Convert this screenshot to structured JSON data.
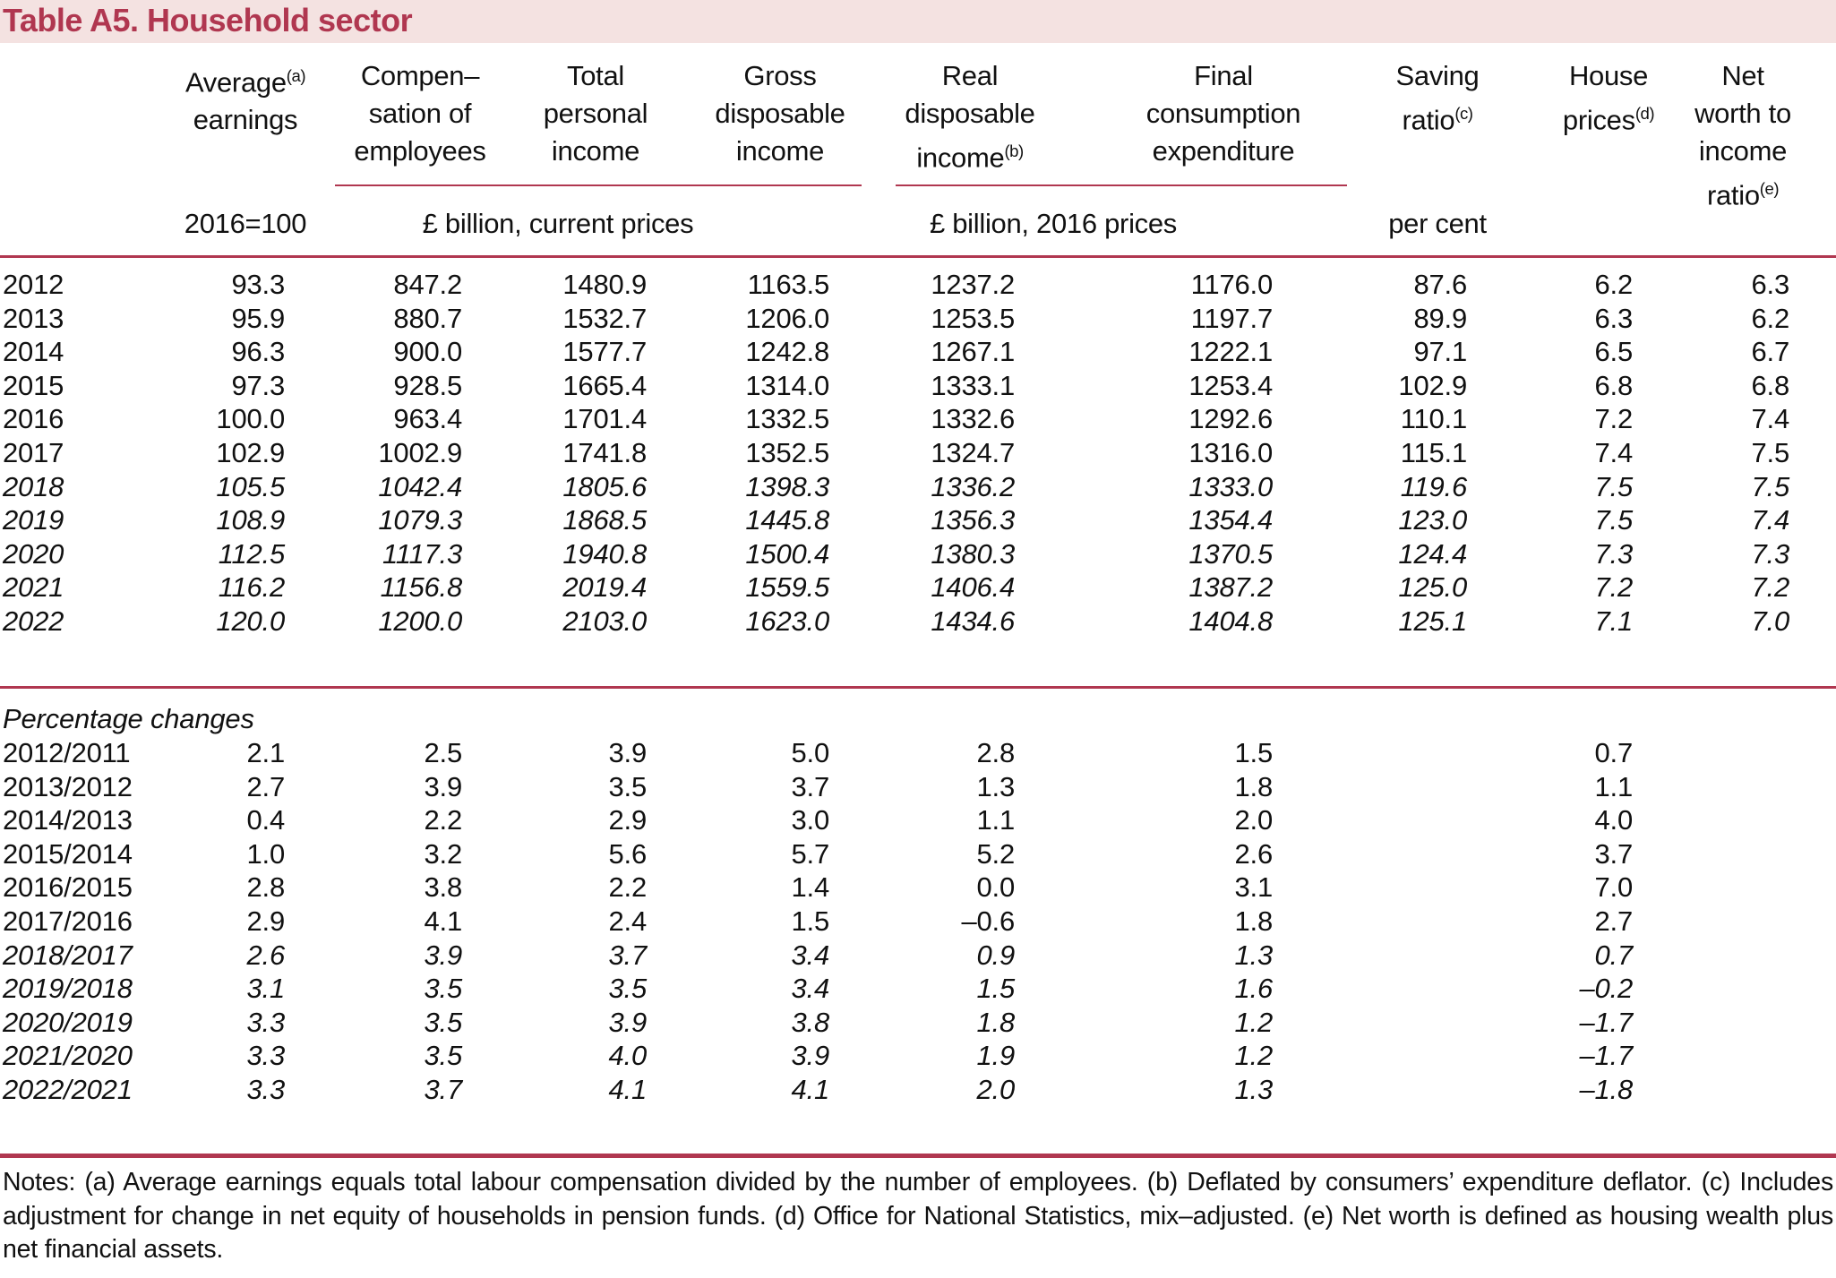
{
  "title": "Table A5. Household sector",
  "colors": {
    "accent": "#b03750",
    "band": "#f4e2e1",
    "text": "#111111"
  },
  "table": {
    "columns": [
      {
        "id": "average-earnings",
        "lines": [
          {
            "t": "Average",
            "s": "(a)"
          },
          {
            "t": "earnings"
          }
        ]
      },
      {
        "id": "compensation-of-employees",
        "lines": [
          {
            "t": "Compen–"
          },
          {
            "t": "sation of"
          },
          {
            "t": "employees"
          }
        ]
      },
      {
        "id": "total-personal-income",
        "lines": [
          {
            "t": "Total"
          },
          {
            "t": "personal"
          },
          {
            "t": "income"
          }
        ]
      },
      {
        "id": "gross-disposable-income",
        "lines": [
          {
            "t": "Gross"
          },
          {
            "t": "disposable"
          },
          {
            "t": "income"
          }
        ]
      },
      {
        "id": "real-disposable-income",
        "lines": [
          {
            "t": "Real"
          },
          {
            "t": "disposable"
          },
          {
            "t": "income",
            "s": "(b)"
          }
        ]
      },
      {
        "id": "final-consumption-expenditure",
        "lines": [
          {
            "t": "Final"
          },
          {
            "t": "consumption"
          },
          {
            "t": "expenditure"
          }
        ]
      },
      {
        "id": "saving-ratio",
        "lines": [
          {
            "t": "Saving"
          },
          {
            "t": "ratio",
            "s": "(c)"
          }
        ]
      },
      {
        "id": "house-prices",
        "lines": [
          {
            "t": "House"
          },
          {
            "t": "prices",
            "s": "(d)"
          }
        ]
      },
      {
        "id": "net-worth-to-income-ratio",
        "lines": [
          {
            "t": "Net"
          },
          {
            "t": "worth to"
          },
          {
            "t": "income"
          },
          {
            "t": "ratio",
            "s": "(e)"
          }
        ]
      }
    ],
    "units": {
      "avg": "2016=100",
      "current_prices": "£ billion, current prices",
      "prices_2016": "£ billion, 2016 prices",
      "per_cent": "per cent"
    },
    "annual_rows": [
      {
        "year": "2012",
        "forecast": false,
        "values": [
          "93.3",
          "847.2",
          "1480.9",
          "1163.5",
          "1237.2",
          "1176.0",
          "87.6",
          "6.2",
          "6.3"
        ]
      },
      {
        "year": "2013",
        "forecast": false,
        "values": [
          "95.9",
          "880.7",
          "1532.7",
          "1206.0",
          "1253.5",
          "1197.7",
          "89.9",
          "6.3",
          "6.2"
        ]
      },
      {
        "year": "2014",
        "forecast": false,
        "values": [
          "96.3",
          "900.0",
          "1577.7",
          "1242.8",
          "1267.1",
          "1222.1",
          "97.1",
          "6.5",
          "6.7"
        ]
      },
      {
        "year": "2015",
        "forecast": false,
        "values": [
          "97.3",
          "928.5",
          "1665.4",
          "1314.0",
          "1333.1",
          "1253.4",
          "102.9",
          "6.8",
          "6.8"
        ]
      },
      {
        "year": "2016",
        "forecast": false,
        "values": [
          "100.0",
          "963.4",
          "1701.4",
          "1332.5",
          "1332.6",
          "1292.6",
          "110.1",
          "7.2",
          "7.4"
        ]
      },
      {
        "year": "2017",
        "forecast": false,
        "values": [
          "102.9",
          "1002.9",
          "1741.8",
          "1352.5",
          "1324.7",
          "1316.0",
          "115.1",
          "7.4",
          "7.5"
        ]
      },
      {
        "year": "2018",
        "forecast": true,
        "values": [
          "105.5",
          "1042.4",
          "1805.6",
          "1398.3",
          "1336.2",
          "1333.0",
          "119.6",
          "7.5",
          "7.5"
        ]
      },
      {
        "year": "2019",
        "forecast": true,
        "values": [
          "108.9",
          "1079.3",
          "1868.5",
          "1445.8",
          "1356.3",
          "1354.4",
          "123.0",
          "7.5",
          "7.4"
        ]
      },
      {
        "year": "2020",
        "forecast": true,
        "values": [
          "112.5",
          "1117.3",
          "1940.8",
          "1500.4",
          "1380.3",
          "1370.5",
          "124.4",
          "7.3",
          "7.3"
        ]
      },
      {
        "year": "2021",
        "forecast": true,
        "values": [
          "116.2",
          "1156.8",
          "2019.4",
          "1559.5",
          "1406.4",
          "1387.2",
          "125.0",
          "7.2",
          "7.2"
        ]
      },
      {
        "year": "2022",
        "forecast": true,
        "values": [
          "120.0",
          "1200.0",
          "2103.0",
          "1623.0",
          "1434.6",
          "1404.8",
          "125.1",
          "7.1",
          "7.0"
        ]
      }
    ],
    "percentage_section_label": "Percentage changes",
    "percentage_rows": [
      {
        "period": "2012/2011",
        "forecast": false,
        "values": [
          "2.1",
          "2.5",
          "3.9",
          "5.0",
          "2.8",
          "1.5",
          "",
          "0.7",
          ""
        ]
      },
      {
        "period": "2013/2012",
        "forecast": false,
        "values": [
          "2.7",
          "3.9",
          "3.5",
          "3.7",
          "1.3",
          "1.8",
          "",
          "1.1",
          ""
        ]
      },
      {
        "period": "2014/2013",
        "forecast": false,
        "values": [
          "0.4",
          "2.2",
          "2.9",
          "3.0",
          "1.1",
          "2.0",
          "",
          "4.0",
          ""
        ]
      },
      {
        "period": "2015/2014",
        "forecast": false,
        "values": [
          "1.0",
          "3.2",
          "5.6",
          "5.7",
          "5.2",
          "2.6",
          "",
          "3.7",
          ""
        ]
      },
      {
        "period": "2016/2015",
        "forecast": false,
        "values": [
          "2.8",
          "3.8",
          "2.2",
          "1.4",
          "0.0",
          "3.1",
          "",
          "7.0",
          ""
        ]
      },
      {
        "period": "2017/2016",
        "forecast": false,
        "values": [
          "2.9",
          "4.1",
          "2.4",
          "1.5",
          "–0.6",
          "1.8",
          "",
          "2.7",
          ""
        ]
      },
      {
        "period": "2018/2017",
        "forecast": true,
        "values": [
          "2.6",
          "3.9",
          "3.7",
          "3.4",
          "0.9",
          "1.3",
          "",
          "0.7",
          ""
        ]
      },
      {
        "period": "2019/2018",
        "forecast": true,
        "values": [
          "3.1",
          "3.5",
          "3.5",
          "3.4",
          "1.5",
          "1.6",
          "",
          "–0.2",
          ""
        ]
      },
      {
        "period": "2020/2019",
        "forecast": true,
        "values": [
          "3.3",
          "3.5",
          "3.9",
          "3.8",
          "1.8",
          "1.2",
          "",
          "–1.7",
          ""
        ]
      },
      {
        "period": "2021/2020",
        "forecast": true,
        "values": [
          "3.3",
          "3.5",
          "4.0",
          "3.9",
          "1.9",
          "1.2",
          "",
          "–1.7",
          ""
        ]
      },
      {
        "period": "2022/2021",
        "forecast": true,
        "values": [
          "3.3",
          "3.7",
          "4.1",
          "4.1",
          "2.0",
          "1.3",
          "",
          "–1.8",
          ""
        ]
      }
    ]
  },
  "notes": "Notes: (a) Average earnings equals total labour compensation divided by the number of employees. (b) Deflated by consumers’ expenditure deflator. (c) Includes adjustment for change in net equity of households in pension funds. (d) Office for National Statistics, mix–adjusted. (e) Net worth is defined as housing wealth plus net financial assets."
}
